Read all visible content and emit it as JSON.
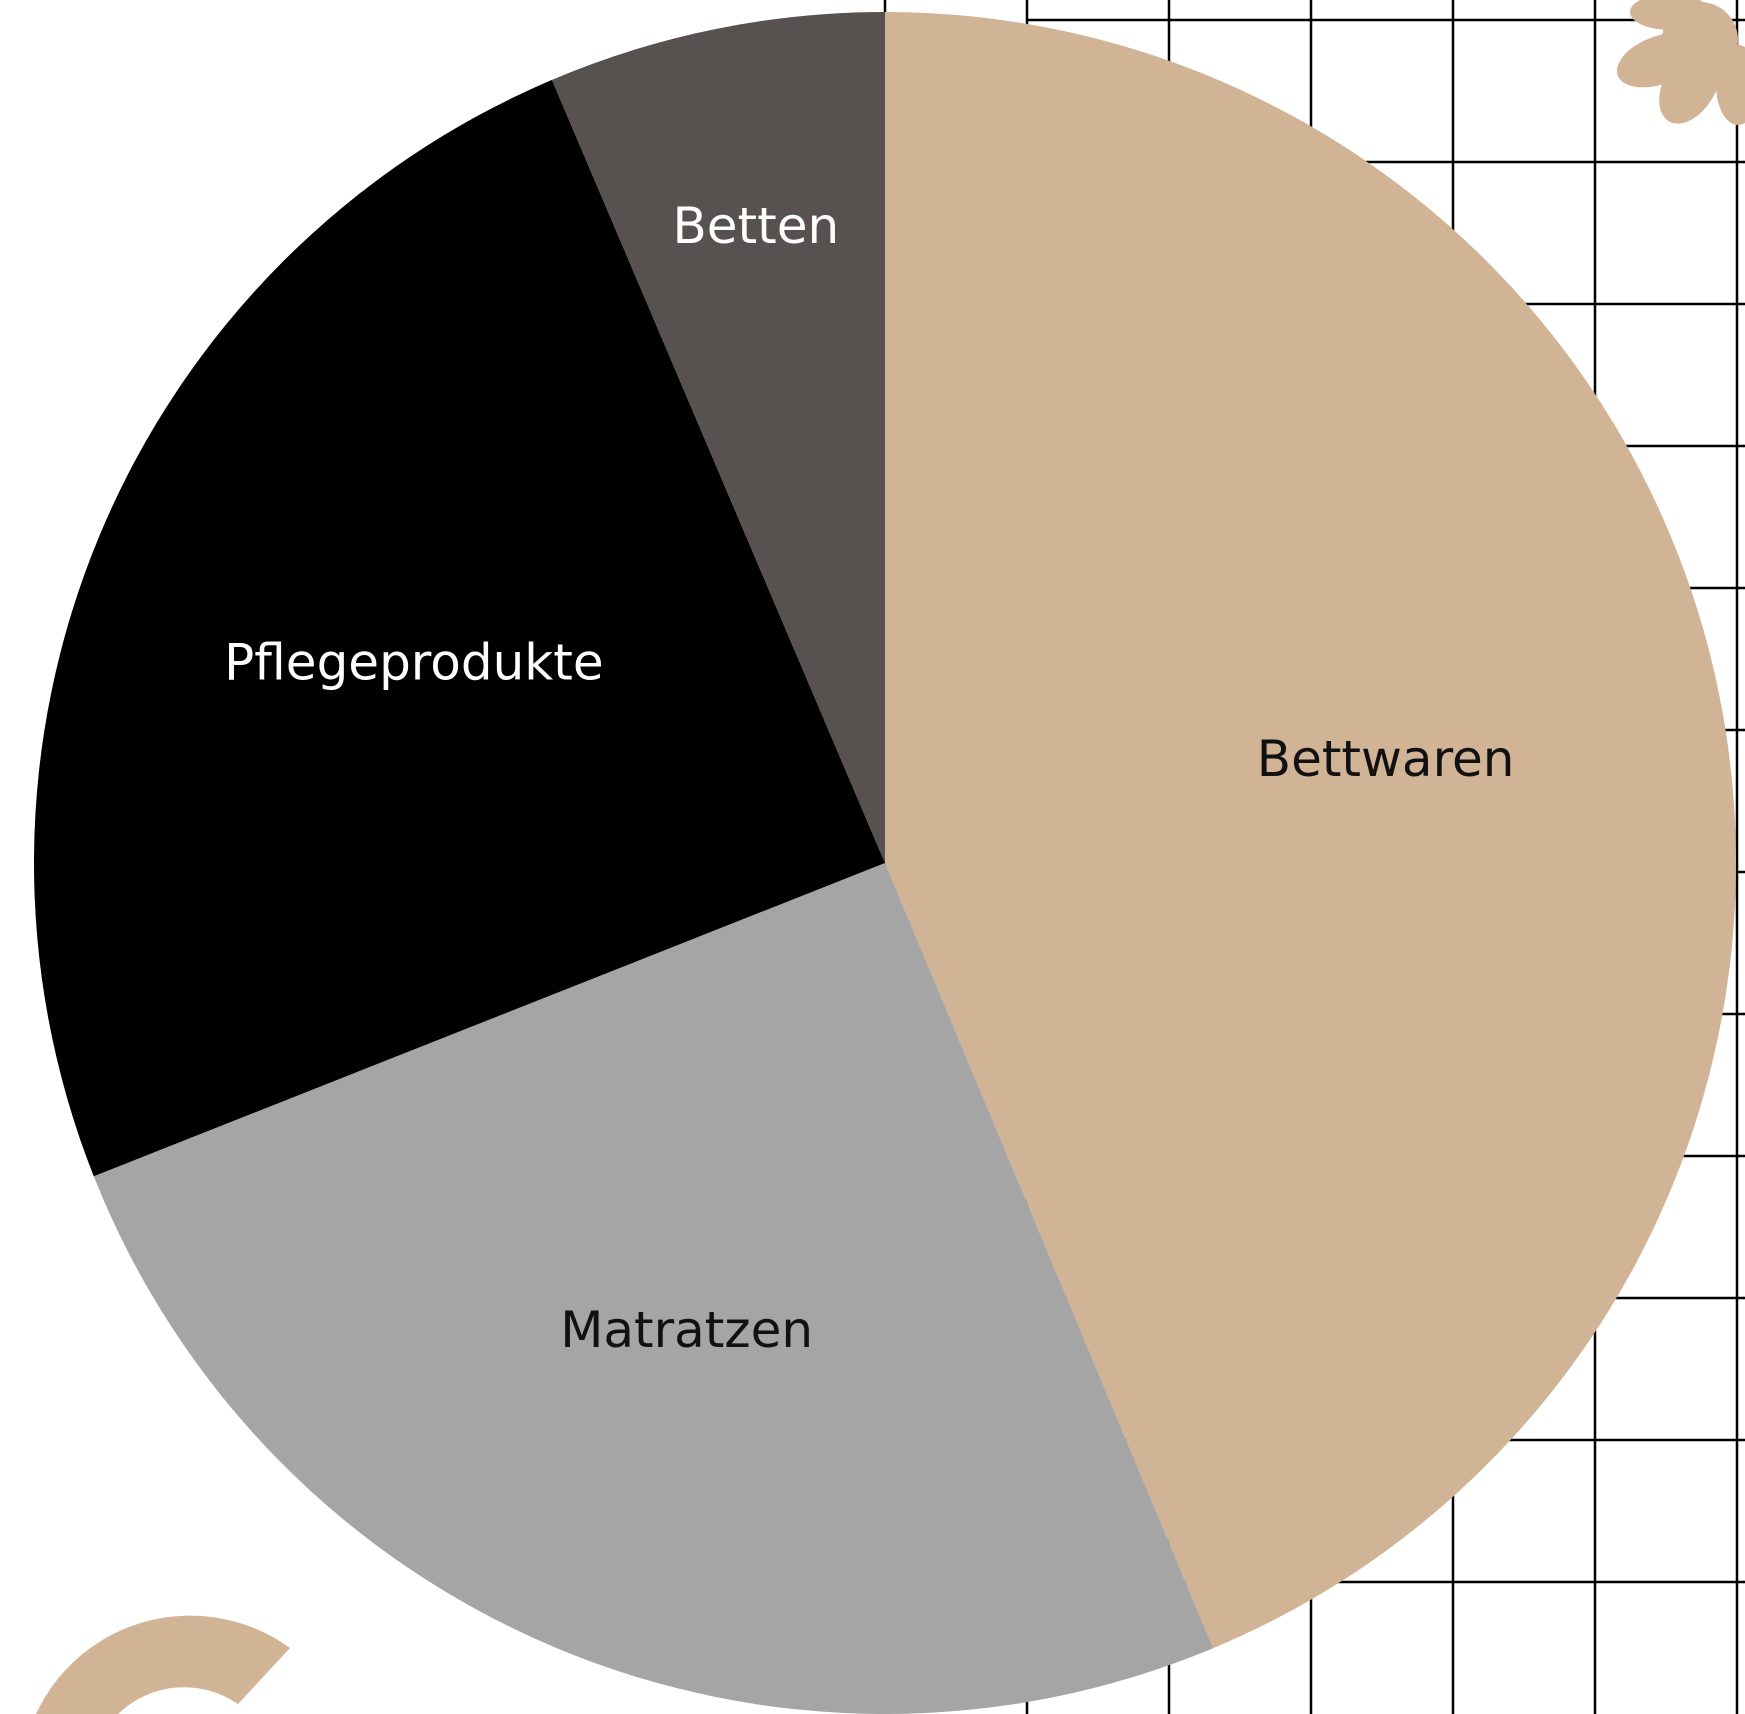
{
  "chart_data": {
    "type": "pie",
    "categories": [
      "Bettwaren",
      "Matratzen",
      "Pflegeprodukte",
      "Betten"
    ],
    "values": [
      43.7,
      25.3,
      24.6,
      6.4
    ],
    "colors": [
      "#d1b396",
      "#a5a5a5",
      "#000000",
      "#575150"
    ]
  }
}
